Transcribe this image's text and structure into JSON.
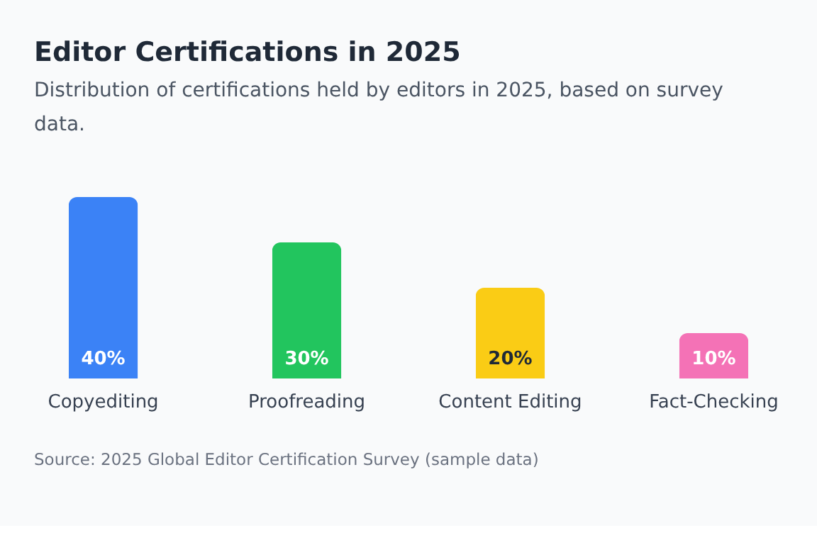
{
  "chart_data": {
    "type": "bar",
    "title": "Editor Certifications in 2025",
    "subtitle": "Distribution of certifications held by editors in 2025, based on survey data.",
    "categories": [
      "Copyediting",
      "Proofreading",
      "Content Editing",
      "Fact-Checking"
    ],
    "values": [
      40,
      30,
      20,
      10
    ],
    "value_labels": [
      "40%",
      "30%",
      "20%",
      "10%"
    ],
    "colors": [
      "#3b82f6",
      "#22c55e",
      "#facc15",
      "#f472b6"
    ],
    "annotations": [
      "Source: 2025 Global Editor Certification Survey (sample data)"
    ]
  }
}
